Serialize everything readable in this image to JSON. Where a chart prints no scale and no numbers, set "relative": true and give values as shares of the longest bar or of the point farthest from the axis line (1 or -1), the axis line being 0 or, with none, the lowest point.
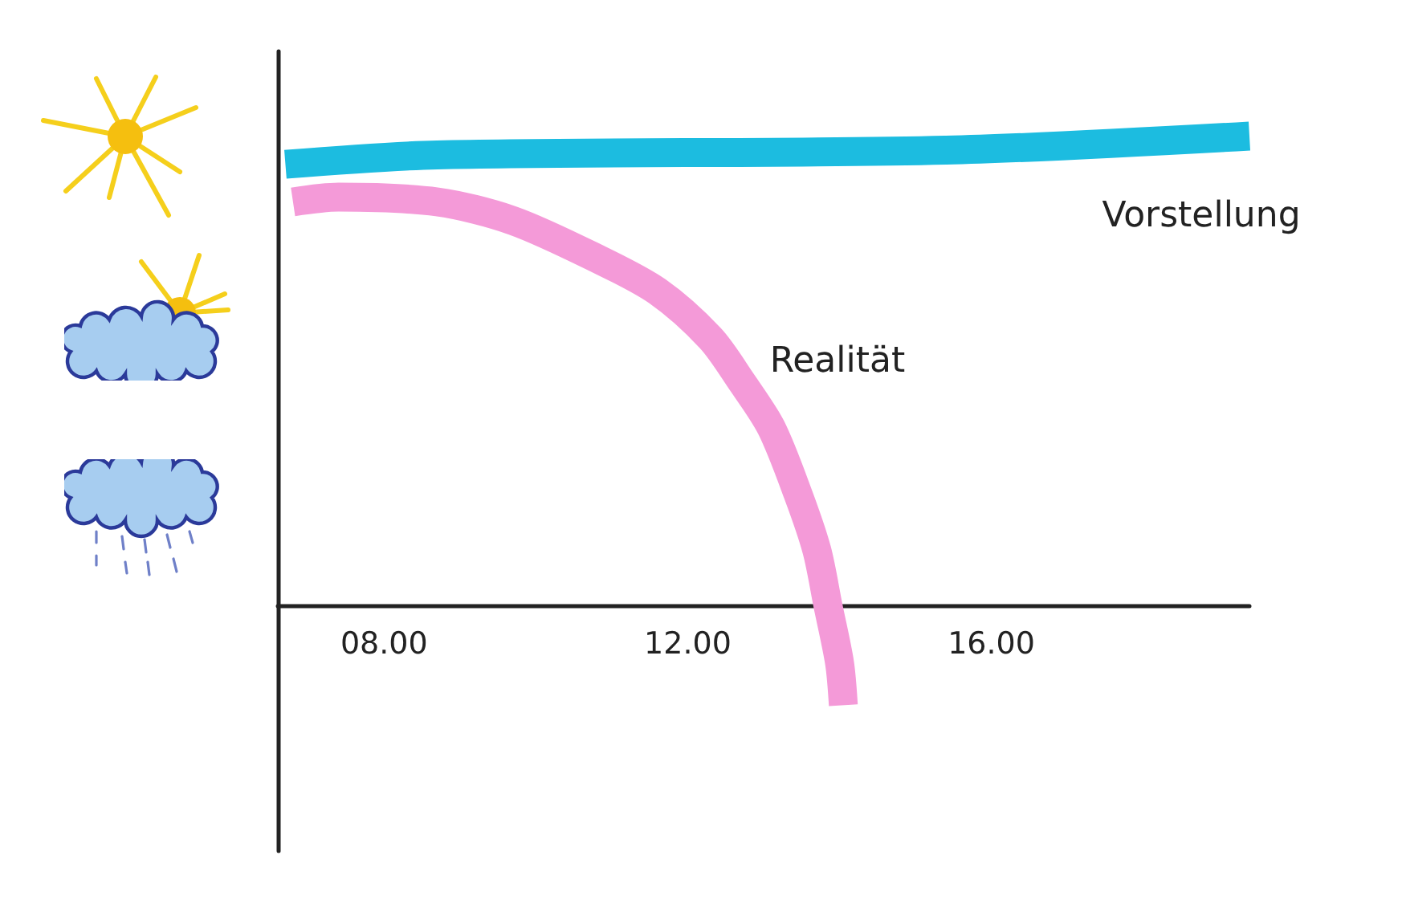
{
  "chart_data": {
    "type": "line",
    "relative": true,
    "xlim": [
      6.6,
      19.4
    ],
    "xticks": [
      {
        "value": 8,
        "label": "08.00"
      },
      {
        "value": 12,
        "label": "12.00"
      },
      {
        "value": 16,
        "label": "16.00"
      }
    ],
    "tick_labels": "x",
    "grid": false,
    "legend": false,
    "marker": "none",
    "line_style": "solid",
    "series": [
      {
        "name": "Vorstellung",
        "color": "#1cbce0",
        "x": [
          6.7,
          8.7,
          15.4,
          19.4
        ],
        "values": [
          0.94,
          0.96,
          0.97,
          1.0
        ]
      },
      {
        "name": "Realität",
        "color": "#f49ad8",
        "x": [
          6.8,
          7.4,
          8.7,
          9.7,
          10.8,
          11.6,
          12.3,
          12.7,
          13.1,
          13.45,
          13.7,
          13.85,
          14.0,
          14.05
        ],
        "values": [
          0.86,
          0.87,
          0.86,
          0.82,
          0.74,
          0.67,
          0.57,
          0.48,
          0.38,
          0.24,
          0.12,
          0,
          -0.12,
          -0.21
        ]
      }
    ]
  }
}
